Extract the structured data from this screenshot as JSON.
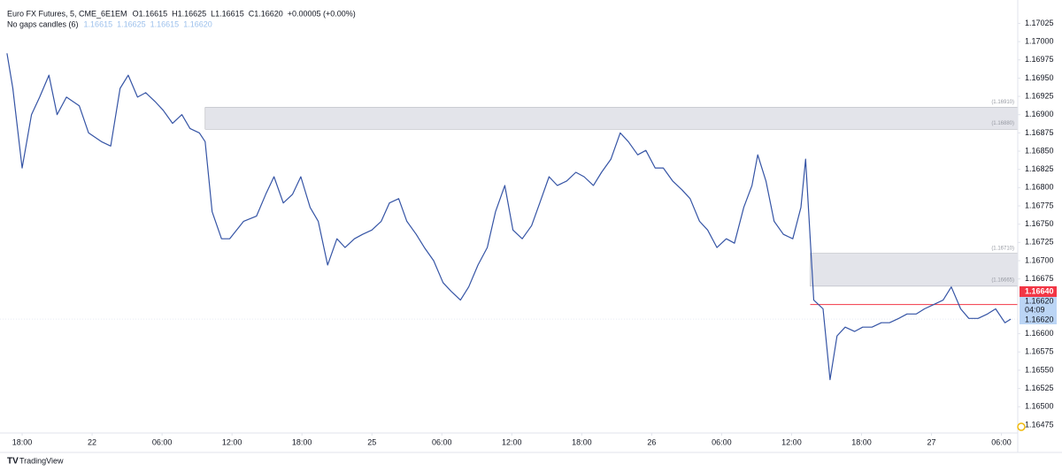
{
  "chart_data": {
    "type": "line",
    "title": "Euro FX Futures, 5, CME_6E1EM",
    "ohlc": [
      "O1.16615",
      "H1.16625",
      "L1.16615",
      "C1.16620",
      "+0.00005 (+0.00%)"
    ],
    "indicator": "No gaps candles (6)",
    "indicator_values": [
      "1.16615",
      "1.16625",
      "1.16615",
      "1.16620"
    ],
    "color": "#3554a5",
    "grid": false,
    "xlim": [
      -1.9,
      85.4
    ],
    "ylim": [
      1.16464,
      1.17057
    ],
    "xticks": [
      {
        "value": 0,
        "label": "18:00"
      },
      {
        "value": 6,
        "label": "22"
      },
      {
        "value": 12,
        "label": "06:00"
      },
      {
        "value": 18,
        "label": "12:00"
      },
      {
        "value": 24,
        "label": "18:00"
      },
      {
        "value": 30,
        "label": "25"
      },
      {
        "value": 36,
        "label": "06:00"
      },
      {
        "value": 42,
        "label": "12:00"
      },
      {
        "value": 48,
        "label": "18:00"
      },
      {
        "value": 54,
        "label": "26"
      },
      {
        "value": 60,
        "label": "06:00"
      },
      {
        "value": 66,
        "label": "12:00"
      },
      {
        "value": 72,
        "label": "18:00"
      },
      {
        "value": 78,
        "label": "27"
      },
      {
        "value": 84,
        "label": "06:00"
      }
    ],
    "yticks": [
      1.16475,
      {
        "value": 1.165,
        "label": "1.16500"
      },
      1.16525,
      {
        "value": 1.1655,
        "label": "1.16550"
      },
      1.16575,
      {
        "value": 1.166,
        "label": "1.16600"
      },
      1.16675,
      {
        "value": 1.167,
        "label": "1.16700"
      },
      1.16725,
      {
        "value": 1.1675,
        "label": "1.16750"
      },
      1.16775,
      {
        "value": 1.168,
        "label": "1.16800"
      },
      1.16825,
      {
        "value": 1.1685,
        "label": "1.16850"
      },
      1.16875,
      {
        "value": 1.169,
        "label": "1.16900"
      },
      1.16925,
      {
        "value": 1.1695,
        "label": "1.16950"
      },
      1.16975,
      {
        "value": 1.17,
        "label": "1.17000"
      },
      1.17025
    ],
    "x": [
      -1.3,
      -0.8,
      0,
      0.8,
      1.5,
      2.3,
      3.0,
      3.8,
      4.9,
      5.7,
      6.8,
      7.6,
      8.4,
      9.1,
      9.9,
      10.6,
      11.4,
      12.1,
      12.9,
      13.7,
      14.4,
      15.2,
      15.7,
      16.3,
      17.1,
      17.8,
      19.0,
      20.1,
      20.9,
      21.6,
      22.4,
      23.2,
      23.9,
      24.7,
      25.4,
      26.2,
      27.0,
      27.7,
      28.5,
      29.2,
      30.0,
      30.8,
      31.5,
      32.3,
      33.0,
      33.8,
      34.5,
      35.3,
      36.1,
      36.8,
      37.6,
      38.3,
      39.1,
      39.9,
      40.6,
      41.4,
      42.1,
      42.9,
      43.7,
      44.4,
      45.2,
      45.9,
      46.7,
      47.5,
      48.2,
      49.0,
      49.7,
      50.5,
      51.3,
      52.0,
      52.8,
      53.5,
      54.3,
      55.0,
      55.8,
      56.6,
      57.3,
      58.1,
      58.8,
      59.6,
      60.4,
      61.1,
      61.9,
      62.6,
      63.1,
      63.8,
      64.5,
      65.3,
      66.1,
      66.8,
      67.2,
      67.6,
      67.9,
      68.7,
      69.3,
      69.9,
      70.6,
      71.4,
      72.1,
      72.9,
      73.7,
      74.4,
      75.2,
      75.9,
      76.7,
      77.4,
      78.2,
      79.0,
      79.7,
      80.5,
      81.2,
      82.0,
      82.8,
      83.5,
      84.3,
      84.8
    ],
    "values": [
      1.16984,
      1.16936,
      1.16827,
      1.169,
      1.16924,
      1.16954,
      1.169,
      1.16924,
      1.16912,
      1.16875,
      1.16863,
      1.16857,
      1.16936,
      1.16954,
      1.16924,
      1.1693,
      1.16918,
      1.16906,
      1.16888,
      1.169,
      1.16881,
      1.16875,
      1.16863,
      1.16767,
      1.1673,
      1.1673,
      1.16754,
      1.16761,
      1.16791,
      1.16815,
      1.16779,
      1.16791,
      1.16815,
      1.16773,
      1.16754,
      1.16694,
      1.1673,
      1.16718,
      1.1673,
      1.16736,
      1.16742,
      1.16754,
      1.16779,
      1.16785,
      1.16754,
      1.16736,
      1.16718,
      1.167,
      1.1667,
      1.16658,
      1.16646,
      1.16664,
      1.16694,
      1.16718,
      1.16767,
      1.16803,
      1.16742,
      1.1673,
      1.16748,
      1.16779,
      1.16815,
      1.16803,
      1.16809,
      1.16821,
      1.16815,
      1.16803,
      1.16821,
      1.16839,
      1.16875,
      1.16863,
      1.16845,
      1.16851,
      1.16827,
      1.16827,
      1.16809,
      1.16797,
      1.16785,
      1.16754,
      1.16742,
      1.16718,
      1.1673,
      1.16724,
      1.16773,
      1.16803,
      1.16845,
      1.16809,
      1.16754,
      1.16736,
      1.1673,
      1.16773,
      1.16839,
      1.1673,
      1.16646,
      1.16634,
      1.16537,
      1.16597,
      1.16609,
      1.16603,
      1.16609,
      1.16609,
      1.16615,
      1.16615,
      1.16621,
      1.16627,
      1.16627,
      1.16634,
      1.1664,
      1.16646,
      1.16664,
      1.16634,
      1.16621,
      1.16621,
      1.16627,
      1.16634,
      1.16615,
      1.1662
    ],
    "zones": [
      {
        "x_start": 15.7,
        "ylim": [
          1.1688,
          1.1691
        ],
        "labels": [
          "(1.16880)",
          "(1.16910)"
        ]
      },
      {
        "x_start": 67.6,
        "ylim": [
          1.16665,
          1.1671
        ],
        "labels": [
          "(1.16665)",
          "(1.16710)"
        ]
      }
    ],
    "price_line": {
      "value": 1.1664,
      "label": "1.16640",
      "color": "#f23645"
    },
    "last_price": {
      "value": 1.1662,
      "label": "1.16620",
      "countdown": "04:09",
      "label2": "1.16620"
    },
    "brand": "TradingView"
  }
}
